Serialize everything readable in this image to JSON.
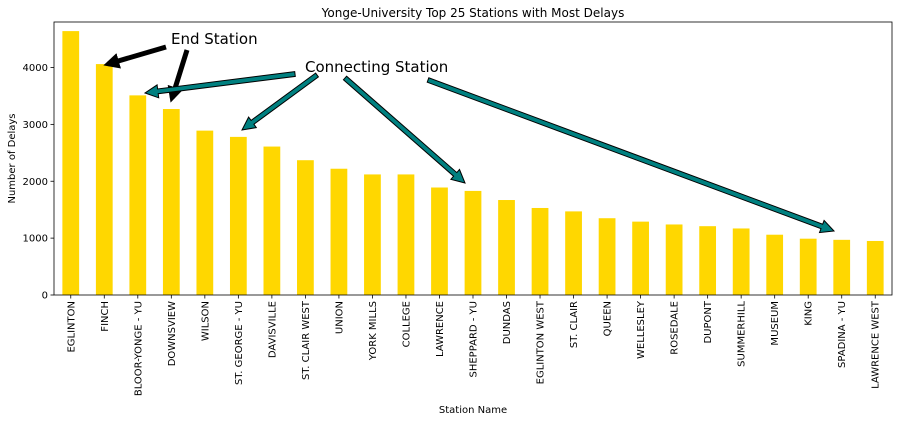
{
  "chart_data": {
    "type": "bar",
    "title": "Yonge-University Top 25 Stations with Most Delays",
    "xlabel": "Station Name",
    "ylabel": "Number of Delays",
    "ylim": [
      0,
      4800
    ],
    "yticks": [
      0,
      1000,
      2000,
      3000,
      4000
    ],
    "grid": false,
    "bar_color": "#FFD700",
    "categories": [
      "EGLINTON",
      "FINCH",
      "BLOOR-YONGE - YU",
      "DOWNSVIEW",
      "WILSON",
      "ST. GEORGE - YU",
      "DAVISVILLE",
      "ST. CLAIR WEST",
      "UNION",
      "YORK MILLS",
      "COLLEGE",
      "LAWRENCE",
      "SHEPPARD - YU",
      "DUNDAS",
      "EGLINTON WEST",
      "ST. CLAIR",
      "QUEEN",
      "WELLESLEY",
      "ROSEDALE",
      "DUPONT",
      "SUMMERHILL",
      "MUSEUM",
      "KING",
      "SPADINA - YU",
      "LAWRENCE WEST"
    ],
    "values": [
      4640,
      4060,
      3510,
      3270,
      2890,
      2780,
      2610,
      2370,
      2220,
      2120,
      2120,
      1890,
      1830,
      1670,
      1530,
      1470,
      1350,
      1290,
      1240,
      1210,
      1170,
      1060,
      990,
      970,
      950
    ],
    "annotations": [
      {
        "text": "End Station",
        "color": "#000000",
        "targets": [
          "FINCH",
          "DOWNSVIEW"
        ]
      },
      {
        "text": "Connecting Station",
        "color": "#008080",
        "targets": [
          "BLOOR-YONGE - YU",
          "ST. GEORGE - YU",
          "SHEPPARD - YU",
          "SPADINA - YU"
        ]
      }
    ]
  }
}
